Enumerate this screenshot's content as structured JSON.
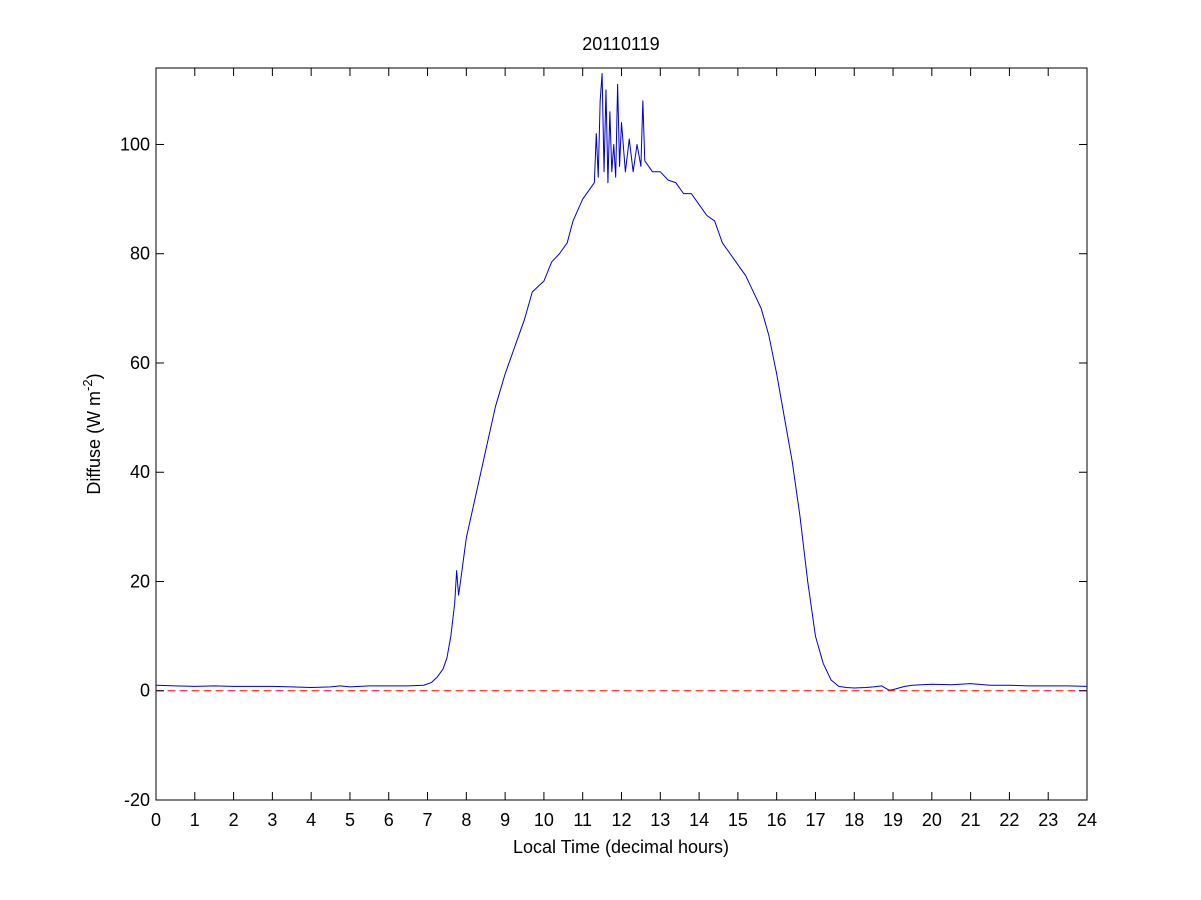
{
  "chart_data": {
    "type": "line",
    "title": "20110119",
    "xlabel": "Local Time (decimal hours)",
    "ylabel": {
      "main": "Diffuse (W m",
      "superscript": "-2",
      "suffix": ")"
    },
    "xlim": [
      0,
      24
    ],
    "ylim": [
      -20,
      114
    ],
    "xticks": [
      0,
      1,
      2,
      3,
      4,
      5,
      6,
      7,
      8,
      9,
      10,
      11,
      12,
      13,
      14,
      15,
      16,
      17,
      18,
      19,
      20,
      21,
      22,
      23,
      24
    ],
    "yticks": [
      -20,
      0,
      20,
      40,
      60,
      80,
      100
    ],
    "grid": false,
    "series": [
      {
        "color": "#0000cc",
        "style": "solid",
        "points": [
          [
            0.0,
            1.0
          ],
          [
            0.5,
            0.9
          ],
          [
            1.0,
            0.8
          ],
          [
            1.5,
            0.9
          ],
          [
            2.0,
            0.8
          ],
          [
            2.5,
            0.8
          ],
          [
            3.0,
            0.8
          ],
          [
            3.5,
            0.7
          ],
          [
            4.0,
            0.6
          ],
          [
            4.5,
            0.7
          ],
          [
            4.75,
            0.9
          ],
          [
            5.0,
            0.7
          ],
          [
            5.5,
            0.9
          ],
          [
            6.0,
            0.9
          ],
          [
            6.5,
            0.9
          ],
          [
            6.9,
            1.0
          ],
          [
            7.1,
            1.5
          ],
          [
            7.25,
            2.5
          ],
          [
            7.4,
            4.0
          ],
          [
            7.5,
            6.0
          ],
          [
            7.6,
            10.0
          ],
          [
            7.7,
            16.0
          ],
          [
            7.75,
            22.0
          ],
          [
            7.8,
            17.5
          ],
          [
            7.85,
            20.0
          ],
          [
            8.0,
            28.0
          ],
          [
            8.25,
            36.0
          ],
          [
            8.5,
            44.0
          ],
          [
            8.75,
            52.0
          ],
          [
            9.0,
            58.0
          ],
          [
            9.25,
            63.0
          ],
          [
            9.5,
            68.0
          ],
          [
            9.7,
            73.0
          ],
          [
            9.85,
            74.0
          ],
          [
            10.0,
            75.0
          ],
          [
            10.2,
            78.5
          ],
          [
            10.4,
            80.0
          ],
          [
            10.6,
            82.0
          ],
          [
            10.75,
            86.0
          ],
          [
            11.0,
            90.0
          ],
          [
            11.2,
            92.0
          ],
          [
            11.3,
            93.0
          ],
          [
            11.35,
            102.0
          ],
          [
            11.4,
            94.0
          ],
          [
            11.45,
            108.0
          ],
          [
            11.5,
            113.0
          ],
          [
            11.55,
            95.0
          ],
          [
            11.6,
            110.0
          ],
          [
            11.65,
            93.0
          ],
          [
            11.7,
            106.0
          ],
          [
            11.75,
            95.0
          ],
          [
            11.8,
            100.0
          ],
          [
            11.85,
            94.0
          ],
          [
            11.9,
            111.0
          ],
          [
            11.95,
            96.0
          ],
          [
            12.0,
            104.0
          ],
          [
            12.1,
            95.0
          ],
          [
            12.2,
            101.0
          ],
          [
            12.3,
            95.0
          ],
          [
            12.4,
            100.0
          ],
          [
            12.5,
            96.0
          ],
          [
            12.55,
            108.0
          ],
          [
            12.6,
            97.0
          ],
          [
            12.7,
            96.0
          ],
          [
            12.8,
            95.0
          ],
          [
            13.0,
            95.0
          ],
          [
            13.2,
            93.5
          ],
          [
            13.4,
            93.0
          ],
          [
            13.6,
            91.0
          ],
          [
            13.8,
            91.0
          ],
          [
            14.0,
            89.0
          ],
          [
            14.2,
            87.0
          ],
          [
            14.4,
            86.0
          ],
          [
            14.5,
            84.0
          ],
          [
            14.6,
            82.0
          ],
          [
            14.8,
            80.0
          ],
          [
            15.0,
            78.0
          ],
          [
            15.2,
            76.0
          ],
          [
            15.4,
            73.0
          ],
          [
            15.6,
            70.0
          ],
          [
            15.8,
            65.0
          ],
          [
            16.0,
            58.0
          ],
          [
            16.2,
            50.0
          ],
          [
            16.4,
            42.0
          ],
          [
            16.6,
            32.0
          ],
          [
            16.8,
            20.0
          ],
          [
            17.0,
            10.0
          ],
          [
            17.2,
            5.0
          ],
          [
            17.4,
            2.0
          ],
          [
            17.6,
            0.8
          ],
          [
            17.8,
            0.6
          ],
          [
            18.0,
            0.5
          ],
          [
            18.3,
            0.6
          ],
          [
            18.5,
            0.7
          ],
          [
            18.7,
            0.9
          ],
          [
            18.9,
            0.1
          ],
          [
            19.0,
            0.2
          ],
          [
            19.3,
            0.8
          ],
          [
            19.5,
            1.0
          ],
          [
            20.0,
            1.2
          ],
          [
            20.5,
            1.1
          ],
          [
            21.0,
            1.3
          ],
          [
            21.5,
            1.0
          ],
          [
            22.0,
            1.0
          ],
          [
            22.5,
            0.9
          ],
          [
            23.0,
            0.9
          ],
          [
            23.5,
            0.9
          ],
          [
            24.0,
            0.8
          ]
        ]
      },
      {
        "color": "#ff0000",
        "style": "dashed",
        "points": [
          [
            0,
            0
          ],
          [
            24,
            0
          ]
        ]
      }
    ]
  }
}
